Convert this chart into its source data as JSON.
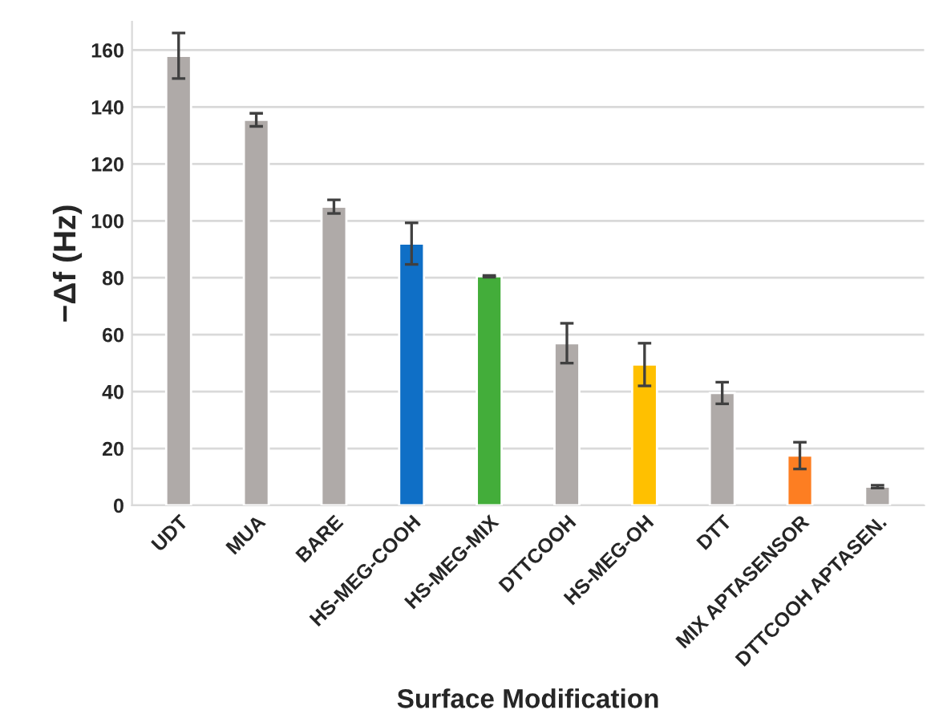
{
  "chart_data": {
    "type": "bar",
    "xlabel": "Surface Modification",
    "ylabel": "−Δf (Hz)",
    "categories": [
      "UDT",
      "MUA",
      "BARE",
      "HS-MEG-COOH",
      "HS-MEG-MIX",
      "DTTCOOH",
      "HS-MEG-OH",
      "DTT",
      "MIX APTASENSOR",
      "DTTCOOH APTASEN."
    ],
    "values": [
      158,
      135.5,
      105,
      92,
      80.5,
      57,
      49.5,
      39.5,
      17.5,
      6.6
    ],
    "errors": [
      8,
      2.3,
      2.4,
      7.3,
      0.3,
      7,
      7.5,
      3.8,
      4.7,
      0.5
    ],
    "colors": [
      "#afaaa8",
      "#afaaa8",
      "#afaaa8",
      "#0f6fc6",
      "#43ad3a",
      "#afaaa8",
      "#ffc000",
      "#afaaa8",
      "#fd7e22",
      "#afaaa8"
    ],
    "ylim": [
      0,
      170
    ],
    "yticks": [
      0,
      20,
      40,
      60,
      80,
      100,
      120,
      140,
      160
    ],
    "grid": "y"
  }
}
